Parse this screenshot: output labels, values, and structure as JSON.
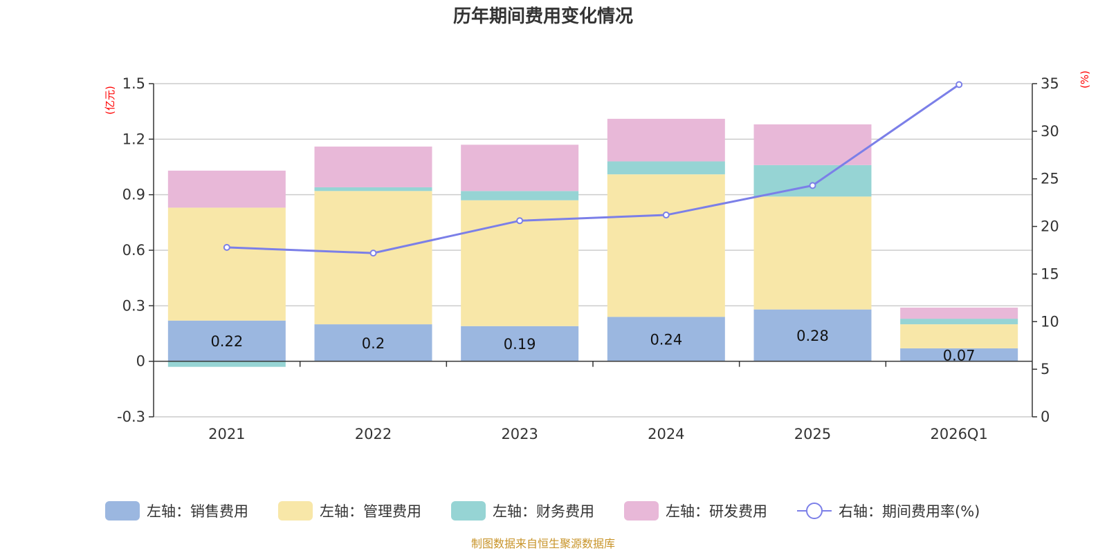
{
  "chart_data": {
    "type": "bar",
    "title": "历年期间费用变化情况",
    "categories": [
      "2021",
      "2022",
      "2023",
      "2024",
      "2025",
      "2026Q1"
    ],
    "left_axis": {
      "unit": "(亿元)",
      "ylim": [
        -0.3,
        1.5
      ],
      "ticks": [
        "-0.3",
        "0",
        "0.3",
        "0.6",
        "0.9",
        "1.2",
        "1.5"
      ]
    },
    "right_axis": {
      "unit": "(%)",
      "ylim": [
        0,
        35
      ],
      "ticks": [
        "0",
        "5",
        "10",
        "15",
        "20",
        "25",
        "30",
        "35"
      ]
    },
    "series": [
      {
        "name": "左轴：销售费用",
        "type": "bar",
        "color": "#9bb7e0",
        "values": [
          0.22,
          0.2,
          0.19,
          0.24,
          0.28,
          0.07
        ],
        "labels": [
          "0.22",
          "0.2",
          "0.19",
          "0.24",
          "0.28",
          "0.07"
        ]
      },
      {
        "name": "左轴：管理费用",
        "type": "bar",
        "color": "#f8e7a8",
        "values": [
          0.61,
          0.72,
          0.68,
          0.77,
          0.61,
          0.13
        ]
      },
      {
        "name": "左轴：财务费用",
        "type": "bar",
        "color": "#96d4d4",
        "values": [
          -0.03,
          0.02,
          0.05,
          0.07,
          0.17,
          0.03
        ]
      },
      {
        "name": "左轴：研发费用",
        "type": "bar",
        "color": "#e8b8d8",
        "values": [
          0.2,
          0.22,
          0.25,
          0.23,
          0.22,
          0.06
        ]
      },
      {
        "name": "右轴：期间费用率(%)",
        "type": "line",
        "axis": "right",
        "color": "#7b7fe8",
        "values": [
          17.8,
          17.2,
          20.6,
          21.2,
          24.3,
          34.9
        ]
      }
    ],
    "grid": true,
    "legend_position": "bottom"
  },
  "source": "制图数据来自恒生聚源数据库"
}
